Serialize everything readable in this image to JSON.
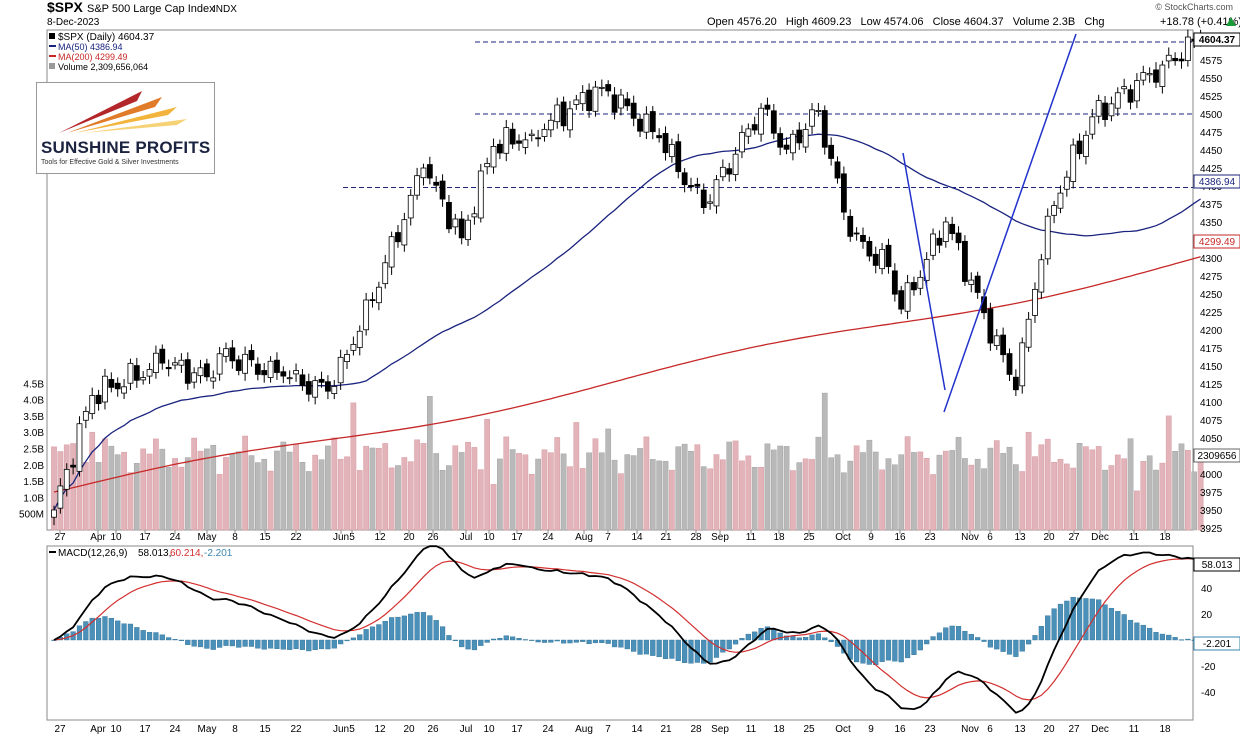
{
  "watermark": "© StockCharts.com",
  "header": {
    "symbol": "$SPX",
    "name": "S&P 500 Large Cap Index",
    "exchange": "INDX",
    "date": "8-Dec-2023",
    "ohlc_line": "Open 4576.20   High 4609.23   Low 4574.06   Close 4604.37   Volume 2.3B   Chg",
    "chg": "+18.78 (+0.41%)",
    "chg_icon": "up-arrow-icon"
  },
  "legend": {
    "price": "$SPX (Daily) 4604.37",
    "ma50": "MA(50) 4386.94",
    "ma200": "MA(200) 4299.49",
    "volume": "Volume 2,309,656,064"
  },
  "logo": {
    "word": "SUNSHINE PROFITS",
    "tagline": "Tools for Effective Gold & Silver Investments"
  },
  "macd_label": {
    "name": "MACD(12,26,9)",
    "macd": "58.013,",
    "signal": "60.214,",
    "hist": "-2.201"
  },
  "colors": {
    "up": "#ffffff",
    "down": "#000000",
    "ma50": "#1a237e",
    "ma200": "#c62828",
    "vol_up": "#e2b3b8",
    "vol_down": "#b9b9b9",
    "hist": "#4a90b8",
    "macd": "#000000",
    "signal": "#d32f2f",
    "trendline": "#2233cc",
    "levels": "#1a237e"
  },
  "price_axis": {
    "ticks": [
      "4575",
      "4550",
      "4525",
      "4500",
      "4475",
      "4450",
      "4425",
      "4400",
      "4375",
      "4350",
      "4325",
      "4300",
      "4275",
      "4250",
      "4225",
      "4200",
      "4175",
      "4150",
      "4125",
      "4100",
      "4075",
      "4050",
      "4025",
      "4000",
      "3975",
      "3950",
      "3925"
    ],
    "range": [
      3910,
      4610
    ]
  },
  "volume_axis": {
    "ticks": [
      "4.5B",
      "4.0B",
      "3.5B",
      "3.0B",
      "2.5B",
      "2.0B",
      "1.5B",
      "1.0B",
      "500M"
    ]
  },
  "macd_axis": {
    "ticks": [
      "40",
      "20",
      "0",
      "-20",
      "-40"
    ],
    "range": [
      -50,
      65
    ]
  },
  "badges": {
    "close": "4604.37",
    "ma50": "4386.94",
    "ma200": "4299.49",
    "volume": "2309656",
    "macd": "58.013",
    "hist": "-2.201"
  },
  "x_labels": [
    "27",
    "Apr",
    "10",
    "17",
    "24",
    "May",
    "8",
    "15",
    "22",
    "Jun",
    "5",
    "12",
    "20",
    "26",
    "Jul",
    "10",
    "17",
    "24",
    "Aug",
    "7",
    "14",
    "21",
    "28",
    "Sep",
    "11",
    "18",
    "25",
    "Oct",
    "9",
    "16",
    "23",
    "Nov",
    "6",
    "13",
    "20",
    "27",
    "Dec",
    "11",
    "18"
  ],
  "chart_data": [
    {
      "type": "candlestick",
      "title": "$SPX S&P 500 Large Cap Index INDX",
      "x_start": "2023-03-23",
      "x_end": "2023-12-08",
      "close_path": [
        [
          "2023-03-23",
          3950
        ],
        [
          "2023-03-31",
          4109
        ],
        [
          "2023-04-18",
          4154
        ],
        [
          "2023-04-27",
          4135
        ],
        [
          "2023-05-01",
          4167
        ],
        [
          "2023-05-15",
          4136
        ],
        [
          "2023-05-24",
          4115
        ],
        [
          "2023-05-31",
          4180
        ],
        [
          "2023-06-15",
          4425
        ],
        [
          "2023-06-26",
          4328
        ],
        [
          "2023-07-03",
          4455
        ],
        [
          "2023-07-12",
          4472
        ],
        [
          "2023-07-27",
          4537
        ],
        [
          "2023-08-09",
          4467
        ],
        [
          "2023-08-18",
          4370
        ],
        [
          "2023-08-31",
          4508
        ],
        [
          "2023-09-07",
          4451
        ],
        [
          "2023-09-14",
          4505
        ],
        [
          "2023-09-21",
          4330
        ],
        [
          "2023-09-29",
          4288
        ],
        [
          "2023-10-03",
          4229
        ],
        [
          "2023-10-12",
          4350
        ],
        [
          "2023-10-20",
          4224
        ],
        [
          "2023-10-27",
          4117
        ],
        [
          "2023-11-03",
          4358
        ],
        [
          "2023-11-14",
          4496
        ],
        [
          "2023-11-30",
          4568
        ],
        [
          "2023-12-08",
          4604
        ]
      ],
      "ma50": {
        "name": "MA(50)",
        "last": 4386.94
      },
      "ma200": {
        "name": "MA(200)",
        "last": 4299.49
      },
      "levels": [
        4600,
        4500,
        4398
      ],
      "ylim": [
        3910,
        4610
      ],
      "last_close": 4604.37
    },
    {
      "type": "bar",
      "title": "Volume",
      "last": 2309656064,
      "ylim": [
        0,
        5000000000.0
      ]
    },
    {
      "type": "line",
      "title": "MACD(12,26,9)",
      "series": [
        {
          "name": "MACD",
          "last": 58.013
        },
        {
          "name": "Signal",
          "last": 60.214
        },
        {
          "name": "Histogram",
          "last": -2.201
        }
      ],
      "ylim": [
        -50,
        65
      ]
    }
  ]
}
